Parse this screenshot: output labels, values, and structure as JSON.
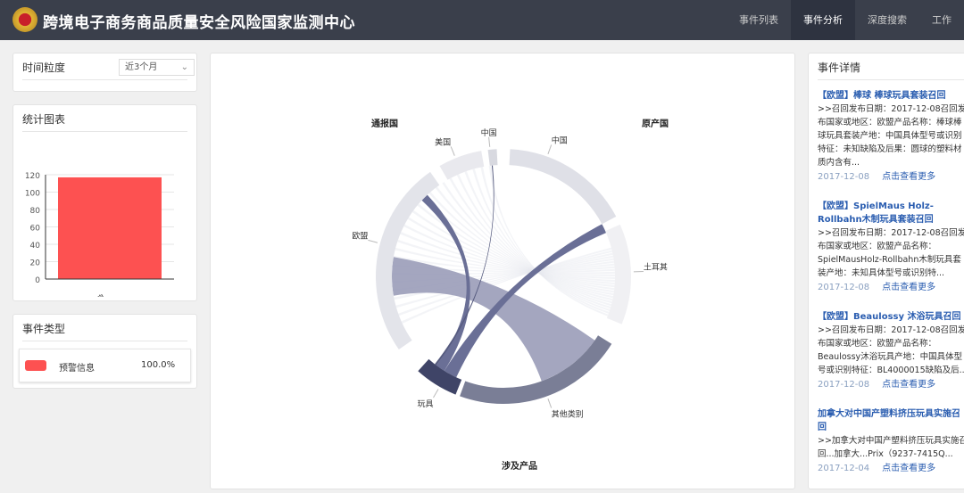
{
  "header": {
    "title": "跨境电子商务商品质量安全风险国家监测中心",
    "nav": [
      "事件列表",
      "事件分析",
      "深度搜索",
      "工作"
    ],
    "active": 1
  },
  "time_panel": {
    "label": "时间粒度",
    "select_value": "近3个月"
  },
  "stats_panel": {
    "title": "统计图表"
  },
  "chart_data": {
    "type": "bar",
    "categories": [
      "预警信息"
    ],
    "values": [
      117
    ],
    "ylim": [
      0,
      120
    ],
    "yticks": [
      0,
      20,
      40,
      60,
      80,
      100,
      120
    ],
    "color": "#fd5151",
    "grid": true
  },
  "type_panel": {
    "title": "事件类型",
    "legend": [
      {
        "label": "预警信息",
        "percent": "100.0%",
        "color": "#fd5151"
      }
    ]
  },
  "chord": {
    "group_titles": [
      "通报国",
      "原产国",
      "涉及产品"
    ],
    "labels": [
      "中国",
      "美国",
      "欧盟",
      "中国",
      "土耳其",
      "其他类别",
      "玩具"
    ]
  },
  "details": {
    "title": "事件详情",
    "more_label": "点击查看更多",
    "items": [
      {
        "title": "【欧盟】棒球 棒球玩具套装召回",
        "body": ">>召回发布日期：2017-12-08召回发布国家或地区：欧盟产品名称：棒球棒球玩具套装产地：中国具体型号或识别特征：未知缺陷及后果：圆球的塑料材质内含有...",
        "date": "2017-12-08"
      },
      {
        "title": "【欧盟】SpielMaus Holz-Rollbahn木制玩具套装召回",
        "body": ">>召回发布日期：2017-12-08召回发布国家或地区：欧盟产品名称：SpielMausHolz-Rollbahn木制玩具套装产地：未知具体型号或识别特...",
        "date": "2017-12-08"
      },
      {
        "title": "【欧盟】Beaulossy 沐浴玩具召回",
        "body": ">>召回发布日期：2017-12-08召回发布国家或地区：欧盟产品名称：Beaulossy沐浴玩具产地：中国具体型号或识别特征：BL4000015缺陷及后...",
        "date": "2017-12-08"
      },
      {
        "title": "加拿大对中国产塑料挤压玩具实施召回",
        "body": ">>加拿大对中国产塑料挤压玩具实施召回...加拿大...Prix（9237-7415Q...",
        "date": "2017-12-04"
      }
    ]
  }
}
